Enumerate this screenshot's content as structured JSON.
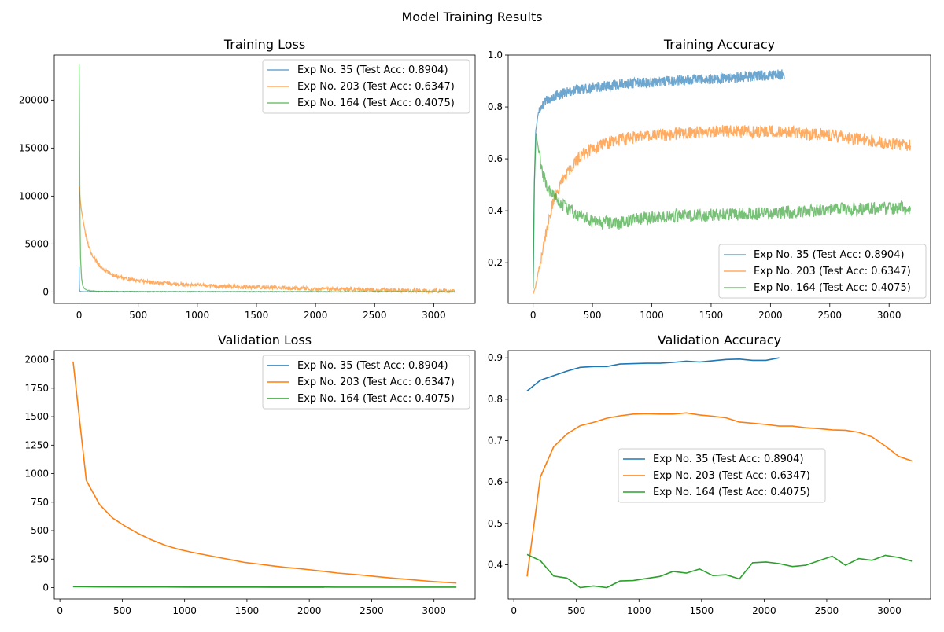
{
  "figure": {
    "suptitle": "Model Training Results"
  },
  "colors": {
    "exp35": "#1f77b4",
    "exp203": "#ff7f0e",
    "exp164": "#2ca02c"
  },
  "chart_data": [
    {
      "id": "training-loss",
      "type": "line",
      "title": "Training Loss",
      "xlabel": "",
      "ylabel": "",
      "xlim": [
        -210,
        3350
      ],
      "ylim": [
        -1200,
        24700
      ],
      "xticks": [
        0,
        500,
        1000,
        1500,
        2000,
        2500,
        3000
      ],
      "yticks": [
        0,
        5000,
        10000,
        15000,
        20000
      ],
      "legend": "upper right",
      "alpha": 0.65,
      "series": [
        {
          "name": "Exp No. 35 (Test Acc: 0.8904)",
          "color_key": "exp35",
          "noise": 20,
          "x": [
            0,
            1,
            2,
            3,
            4,
            6,
            10,
            20,
            50,
            100,
            500,
            1000,
            2120
          ],
          "y": [
            2600,
            1500,
            800,
            400,
            200,
            100,
            50,
            30,
            20,
            15,
            10,
            8,
            5
          ]
        },
        {
          "name": "Exp No. 203 (Test Acc: 0.6347)",
          "color_key": "exp203",
          "noise": 200,
          "x": [
            0,
            10,
            20,
            40,
            60,
            80,
            100,
            130,
            160,
            200,
            250,
            300,
            400,
            500,
            700,
            1000,
            1300,
            1600,
            2000,
            2500,
            3000,
            3180
          ],
          "y": [
            11000,
            9500,
            8500,
            7000,
            5800,
            4900,
            4200,
            3500,
            2900,
            2400,
            2000,
            1700,
            1400,
            1150,
            900,
            700,
            550,
            450,
            320,
            200,
            120,
            100
          ]
        },
        {
          "name": "Exp No. 164 (Test Acc: 0.4075)",
          "color_key": "exp164",
          "noise": 30,
          "x": [
            0,
            2,
            4,
            6,
            8,
            12,
            20,
            30,
            40,
            60,
            100,
            200,
            500,
            3180
          ],
          "y": [
            23700,
            20000,
            15000,
            10500,
            7000,
            3500,
            1500,
            700,
            400,
            200,
            100,
            50,
            20,
            10
          ]
        }
      ]
    },
    {
      "id": "training-accuracy",
      "type": "line",
      "title": "Training Accuracy",
      "xlabel": "",
      "ylabel": "",
      "xlim": [
        -210,
        3350
      ],
      "ylim": [
        0.043,
        1.0
      ],
      "xticks": [
        0,
        500,
        1000,
        1500,
        2000,
        2500,
        3000
      ],
      "yticks": [
        0.2,
        0.4,
        0.6,
        0.8,
        1.0
      ],
      "legend": "lower right",
      "alpha": 0.65,
      "series": [
        {
          "name": "Exp No. 35 (Test Acc: 0.8904)",
          "color_key": "exp35",
          "noise": 0.02,
          "x": [
            0,
            10,
            20,
            40,
            70,
            100,
            200,
            400,
            600,
            800,
            1000,
            1300,
            1600,
            1900,
            2120
          ],
          "y": [
            0.1,
            0.5,
            0.7,
            0.77,
            0.8,
            0.82,
            0.845,
            0.87,
            0.88,
            0.89,
            0.895,
            0.905,
            0.91,
            0.92,
            0.925
          ]
        },
        {
          "name": "Exp No. 203 (Test Acc: 0.6347)",
          "color_key": "exp203",
          "noise": 0.025,
          "x": [
            0,
            20,
            50,
            100,
            150,
            200,
            250,
            300,
            400,
            500,
            600,
            800,
            1000,
            1300,
            1600,
            2000,
            2400,
            2700,
            3000,
            3180
          ],
          "y": [
            0.08,
            0.11,
            0.18,
            0.3,
            0.4,
            0.47,
            0.52,
            0.56,
            0.61,
            0.64,
            0.66,
            0.68,
            0.69,
            0.7,
            0.705,
            0.705,
            0.695,
            0.68,
            0.66,
            0.65
          ]
        },
        {
          "name": "Exp No. 164 (Test Acc: 0.4075)",
          "color_key": "exp164",
          "noise": 0.025,
          "x": [
            0,
            10,
            25,
            50,
            80,
            120,
            180,
            250,
            350,
            500,
            700,
            900,
            1200,
            1500,
            2000,
            2500,
            3000,
            3180
          ],
          "y": [
            0.1,
            0.5,
            0.7,
            0.62,
            0.55,
            0.49,
            0.45,
            0.42,
            0.39,
            0.36,
            0.35,
            0.37,
            0.38,
            0.385,
            0.39,
            0.405,
            0.41,
            0.41
          ]
        }
      ]
    },
    {
      "id": "validation-loss",
      "type": "line",
      "title": "Validation Loss",
      "xlabel": "",
      "ylabel": "",
      "xlim": [
        -45,
        3330
      ],
      "ylim": [
        -100,
        2080
      ],
      "xticks": [
        0,
        500,
        1000,
        1500,
        2000,
        2500,
        3000
      ],
      "yticks": [
        0,
        250,
        500,
        750,
        1000,
        1250,
        1500,
        1750,
        2000
      ],
      "legend": "upper right",
      "alpha": 1,
      "series": [
        {
          "name": "Exp No. 35 (Test Acc: 0.8904)",
          "color_key": "exp35",
          "x": [
            106,
            212,
            318,
            424,
            530,
            636,
            742,
            848,
            954,
            1060,
            1166,
            1272,
            1378,
            1484,
            1590,
            1696,
            1802,
            1908,
            2014,
            2120
          ],
          "y": [
            10,
            9,
            8,
            7,
            6.5,
            6,
            5.8,
            5.5,
            5.3,
            5.1,
            5,
            4.9,
            4.8,
            4.7,
            4.6,
            4.5,
            4.4,
            4.3,
            4.2,
            4.1
          ]
        },
        {
          "name": "Exp No. 203 (Test Acc: 0.6347)",
          "color_key": "exp203",
          "x": [
            106,
            212,
            318,
            424,
            530,
            636,
            742,
            848,
            954,
            1060,
            1166,
            1272,
            1378,
            1484,
            1590,
            1696,
            1802,
            1908,
            2014,
            2120,
            2226,
            2332,
            2438,
            2544,
            2650,
            2756,
            2862,
            2968,
            3074,
            3180
          ],
          "y": [
            1985,
            940,
            730,
            610,
            535,
            470,
            415,
            370,
            335,
            310,
            287,
            265,
            243,
            220,
            207,
            192,
            178,
            168,
            155,
            142,
            128,
            118,
            108,
            96,
            85,
            75,
            65,
            55,
            47,
            40
          ]
        },
        {
          "name": "Exp No. 164 (Test Acc: 0.4075)",
          "color_key": "exp164",
          "x": [
            106,
            212,
            318,
            424,
            530,
            636,
            742,
            848,
            954,
            1060,
            1166,
            1272,
            1378,
            1484,
            1590,
            1696,
            1802,
            1908,
            2014,
            2120,
            2226,
            2332,
            2438,
            2544,
            2650,
            2756,
            2862,
            2968,
            3074,
            3180
          ],
          "y": [
            8,
            7,
            6.5,
            6,
            5.8,
            5.6,
            5.4,
            5.3,
            5.2,
            5.1,
            5,
            5,
            4.9,
            4.9,
            4.8,
            4.8,
            4.7,
            4.7,
            4.6,
            4.6,
            4.5,
            4.5,
            4.4,
            4.4,
            4.3,
            4.3,
            4.2,
            4.2,
            4.1,
            4.1
          ]
        }
      ]
    },
    {
      "id": "validation-accuracy",
      "type": "line",
      "title": "Validation Accuracy",
      "xlabel": "",
      "ylabel": "",
      "xlim": [
        -45,
        3330
      ],
      "ylim": [
        0.3175,
        0.9175
      ],
      "xticks": [
        0,
        500,
        1000,
        1500,
        2000,
        2500,
        3000
      ],
      "yticks": [
        0.4,
        0.5,
        0.6,
        0.7,
        0.8,
        0.9
      ],
      "legend": "center",
      "alpha": 1,
      "series": [
        {
          "name": "Exp No. 35 (Test Acc: 0.8904)",
          "color_key": "exp35",
          "x": [
            106,
            212,
            318,
            424,
            530,
            636,
            742,
            848,
            954,
            1060,
            1166,
            1272,
            1378,
            1484,
            1590,
            1696,
            1802,
            1908,
            2014,
            2120
          ],
          "y": [
            0.82,
            0.846,
            0.857,
            0.868,
            0.877,
            0.879,
            0.879,
            0.885,
            0.886,
            0.887,
            0.887,
            0.889,
            0.892,
            0.89,
            0.893,
            0.896,
            0.897,
            0.894,
            0.894,
            0.9
          ]
        },
        {
          "name": "Exp No. 203 (Test Acc: 0.6347)",
          "color_key": "exp203",
          "x": [
            106,
            212,
            318,
            424,
            530,
            636,
            742,
            848,
            954,
            1060,
            1166,
            1272,
            1378,
            1484,
            1590,
            1696,
            1802,
            1908,
            2014,
            2120,
            2226,
            2332,
            2438,
            2544,
            2650,
            2756,
            2862,
            2968,
            3074,
            3180
          ],
          "y": [
            0.372,
            0.612,
            0.685,
            0.716,
            0.736,
            0.744,
            0.754,
            0.76,
            0.764,
            0.765,
            0.764,
            0.764,
            0.767,
            0.762,
            0.759,
            0.755,
            0.745,
            0.742,
            0.739,
            0.735,
            0.735,
            0.731,
            0.729,
            0.726,
            0.725,
            0.72,
            0.709,
            0.687,
            0.662,
            0.651
          ]
        },
        {
          "name": "Exp No. 164 (Test Acc: 0.4075)",
          "color_key": "exp164",
          "x": [
            106,
            212,
            318,
            424,
            530,
            636,
            742,
            848,
            954,
            1060,
            1166,
            1272,
            1378,
            1484,
            1590,
            1696,
            1802,
            1908,
            2014,
            2120,
            2226,
            2332,
            2438,
            2544,
            2650,
            2756,
            2862,
            2968,
            3074,
            3180
          ],
          "y": [
            0.425,
            0.41,
            0.373,
            0.368,
            0.345,
            0.349,
            0.345,
            0.361,
            0.362,
            0.367,
            0.372,
            0.384,
            0.38,
            0.39,
            0.374,
            0.376,
            0.366,
            0.405,
            0.407,
            0.403,
            0.396,
            0.399,
            0.41,
            0.421,
            0.399,
            0.415,
            0.411,
            0.423,
            0.418,
            0.409
          ]
        }
      ]
    }
  ]
}
